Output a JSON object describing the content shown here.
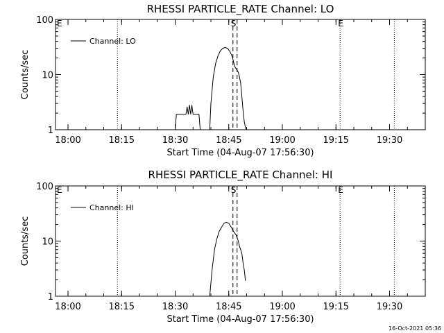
{
  "footer_timestamp": "16-Oct-2021 05:36",
  "chart_data": [
    {
      "type": "line",
      "title": "RHESSI PARTICLE_RATE Channel: LO",
      "xlabel": "Start Time (04-Aug-07 17:56:30)",
      "ylabel": "Counts/sec",
      "yscale": "log",
      "ylim": [
        1,
        100
      ],
      "xlim": [
        "17:56:30",
        "19:40:00"
      ],
      "x_ticks": [
        "18:00",
        "18:15",
        "18:30",
        "18:45",
        "19:00",
        "19:15",
        "19:30"
      ],
      "y_ticks": [
        "1",
        "10",
        "100"
      ],
      "legend": {
        "position": "top-left",
        "entries": [
          "Channel: LO"
        ]
      },
      "series": [
        {
          "name": "Channel: LO",
          "x": [
            "18:30:00",
            "18:30:20",
            "18:31:20",
            "18:31:40",
            "18:33:00",
            "18:33:20",
            "18:33:40",
            "18:34:00",
            "18:34:20",
            "18:34:40",
            "18:35:00",
            "18:35:20",
            "18:36:40",
            "18:37:00",
            "18:39:40",
            "18:40:00",
            "18:40:40",
            "18:41:20",
            "18:42:00",
            "18:42:40",
            "18:43:20",
            "18:44:00",
            "18:44:40",
            "18:45:20",
            "18:46:00",
            "18:46:40",
            "18:47:20",
            "18:47:40",
            "18:48:00",
            "18:48:20",
            "18:48:40",
            "18:49:00",
            "18:49:20",
            "18:49:40",
            "18:50:00"
          ],
          "y": [
            1.0,
            1.9,
            1.9,
            1.9,
            1.9,
            2.6,
            1.9,
            2.8,
            1.9,
            2.8,
            1.9,
            1.9,
            1.9,
            1.0,
            1.0,
            3.0,
            9.0,
            16,
            22,
            27,
            30,
            31,
            30,
            26,
            21,
            14,
            12,
            11,
            9,
            7,
            4,
            2.2,
            1.4,
            1.1,
            1.0
          ]
        }
      ],
      "vlines": [
        {
          "time": "18:13:50",
          "style": "dotted",
          "label": ""
        },
        {
          "time": "18:46:10",
          "style": "dashed",
          "label": "S"
        },
        {
          "time": "18:47:20",
          "style": "dashed",
          "label": ""
        },
        {
          "time": "19:16:10",
          "style": "dotted",
          "label": "E"
        },
        {
          "time": "19:31:20",
          "style": "dotted",
          "label": ""
        },
        {
          "time": "17:56:30",
          "style": "none",
          "label": "E"
        }
      ]
    },
    {
      "type": "line",
      "title": "RHESSI PARTICLE_RATE Channel: HI",
      "xlabel": "Start Time (04-Aug-07 17:56:30)",
      "ylabel": "Counts/sec",
      "yscale": "log",
      "ylim": [
        1,
        100
      ],
      "xlim": [
        "17:56:30",
        "19:40:00"
      ],
      "x_ticks": [
        "18:00",
        "18:15",
        "18:30",
        "18:45",
        "19:00",
        "19:15",
        "19:30"
      ],
      "y_ticks": [
        "1",
        "10",
        "100"
      ],
      "legend": {
        "position": "top-left",
        "entries": [
          "Channel: HI"
        ]
      },
      "series": [
        {
          "name": "Channel: HI",
          "x": [
            "18:39:40",
            "18:40:20",
            "18:41:00",
            "18:41:40",
            "18:42:20",
            "18:43:00",
            "18:43:40",
            "18:44:20",
            "18:45:00",
            "18:45:40",
            "18:46:20",
            "18:47:00",
            "18:47:40",
            "18:48:00",
            "18:48:20",
            "18:48:40",
            "18:49:00",
            "18:49:20",
            "18:49:40"
          ],
          "y": [
            1.0,
            3.0,
            7,
            11,
            15,
            18,
            21,
            22,
            21,
            18,
            15,
            13,
            10,
            8,
            7,
            6,
            4,
            3,
            1.9
          ]
        }
      ],
      "vlines": [
        {
          "time": "18:13:50",
          "style": "dotted",
          "label": ""
        },
        {
          "time": "18:46:10",
          "style": "dashed",
          "label": "S"
        },
        {
          "time": "18:47:20",
          "style": "dashed",
          "label": ""
        },
        {
          "time": "19:16:10",
          "style": "dotted",
          "label": "E"
        },
        {
          "time": "19:31:20",
          "style": "dotted",
          "label": ""
        },
        {
          "time": "17:56:30",
          "style": "none",
          "label": "E"
        }
      ]
    }
  ]
}
